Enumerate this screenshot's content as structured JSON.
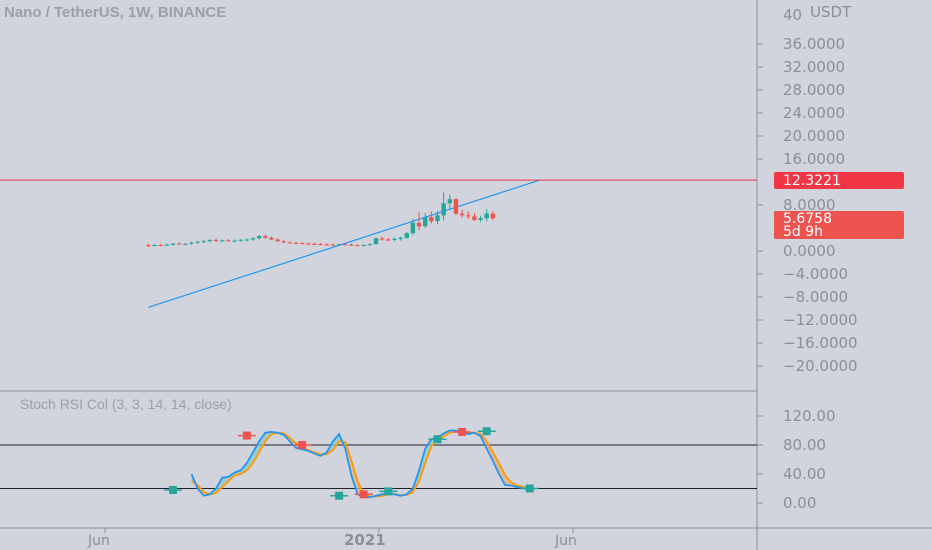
{
  "header": {
    "symbol_title": "Nano / TetherUS, 1W, BINANCE",
    "currency": "USDT",
    "top_tick_partial": "40"
  },
  "price_axis": {
    "ticks": [
      "36.0000",
      "32.0000",
      "28.0000",
      "24.0000",
      "20.0000",
      "16.0000",
      "8.0000",
      "0.0000",
      "−4.0000",
      "−8.0000",
      "−12.0000",
      "−16.0000",
      "−20.0000"
    ]
  },
  "price_badges": {
    "level_value": "12.3221",
    "last_price": "5.6758",
    "countdown": "5d 9h",
    "level_color": "#f23645",
    "last_color": "#ef5350"
  },
  "indicator": {
    "label": "Stoch RSI Col (3, 3, 14, 14, close)",
    "axis_ticks": [
      "120.00",
      "80.00",
      "40.00",
      "0.00"
    ],
    "bands": [
      80,
      20
    ]
  },
  "time_axis": {
    "labels": [
      "Jun",
      "2021",
      "Jun"
    ]
  },
  "colors": {
    "background": "#d1d4dc",
    "up": "#26a69a",
    "down": "#ef5350",
    "k_line": "#2196f3",
    "d_line": "#ff9800",
    "trendline": "#2196f3",
    "level_line": "#f23645",
    "separator": "#8a8f99"
  },
  "chart_data": [
    {
      "type": "candlestick",
      "title": "Nano / TetherUS, 1W, BINANCE",
      "y_unit": "USDT",
      "ylim": [
        -22,
        41
      ],
      "horizontal_level": 12.3221,
      "last_price": 5.6758,
      "trendline": {
        "start": {
          "week": 0,
          "price": -9.8
        },
        "end": {
          "week": 63.5,
          "price": 12.3
        }
      },
      "candles": [
        {
          "o": 1.0,
          "h": 1.3,
          "l": 0.7,
          "c": 0.95
        },
        {
          "o": 0.95,
          "h": 1.2,
          "l": 0.8,
          "c": 1.05
        },
        {
          "o": 1.05,
          "h": 1.25,
          "l": 0.85,
          "c": 1.0
        },
        {
          "o": 1.0,
          "h": 1.3,
          "l": 0.9,
          "c": 1.1
        },
        {
          "o": 1.1,
          "h": 1.4,
          "l": 0.95,
          "c": 1.3
        },
        {
          "o": 1.3,
          "h": 1.5,
          "l": 1.1,
          "c": 1.2
        },
        {
          "o": 1.2,
          "h": 1.4,
          "l": 1.0,
          "c": 1.25
        },
        {
          "o": 1.25,
          "h": 1.6,
          "l": 1.1,
          "c": 1.45
        },
        {
          "o": 1.45,
          "h": 1.8,
          "l": 1.3,
          "c": 1.6
        },
        {
          "o": 1.6,
          "h": 1.9,
          "l": 1.4,
          "c": 1.7
        },
        {
          "o": 1.7,
          "h": 2.1,
          "l": 1.5,
          "c": 1.9
        },
        {
          "o": 1.9,
          "h": 2.2,
          "l": 1.6,
          "c": 1.8
        },
        {
          "o": 1.8,
          "h": 2.0,
          "l": 1.55,
          "c": 1.85
        },
        {
          "o": 1.85,
          "h": 2.1,
          "l": 1.6,
          "c": 1.75
        },
        {
          "o": 1.75,
          "h": 2.0,
          "l": 1.5,
          "c": 1.8
        },
        {
          "o": 1.8,
          "h": 2.1,
          "l": 1.6,
          "c": 1.95
        },
        {
          "o": 1.95,
          "h": 2.2,
          "l": 1.7,
          "c": 2.0
        },
        {
          "o": 2.0,
          "h": 2.4,
          "l": 1.8,
          "c": 2.2
        },
        {
          "o": 2.2,
          "h": 2.8,
          "l": 2.0,
          "c": 2.6
        },
        {
          "o": 2.6,
          "h": 2.9,
          "l": 2.1,
          "c": 2.3
        },
        {
          "o": 2.3,
          "h": 2.5,
          "l": 1.9,
          "c": 2.0
        },
        {
          "o": 2.0,
          "h": 2.2,
          "l": 1.6,
          "c": 1.7
        },
        {
          "o": 1.7,
          "h": 1.9,
          "l": 1.4,
          "c": 1.5
        },
        {
          "o": 1.5,
          "h": 1.7,
          "l": 1.3,
          "c": 1.4
        },
        {
          "o": 1.4,
          "h": 1.6,
          "l": 1.2,
          "c": 1.35
        },
        {
          "o": 1.35,
          "h": 1.55,
          "l": 1.15,
          "c": 1.3
        },
        {
          "o": 1.3,
          "h": 1.5,
          "l": 1.1,
          "c": 1.25
        },
        {
          "o": 1.25,
          "h": 1.45,
          "l": 1.05,
          "c": 1.2
        },
        {
          "o": 1.2,
          "h": 1.4,
          "l": 1.0,
          "c": 1.15
        },
        {
          "o": 1.15,
          "h": 1.35,
          "l": 0.95,
          "c": 1.1
        },
        {
          "o": 1.1,
          "h": 1.3,
          "l": 0.9,
          "c": 1.05
        },
        {
          "o": 1.05,
          "h": 1.25,
          "l": 0.9,
          "c": 1.15
        },
        {
          "o": 1.15,
          "h": 1.4,
          "l": 0.95,
          "c": 1.1
        },
        {
          "o": 1.1,
          "h": 1.3,
          "l": 0.9,
          "c": 1.0
        },
        {
          "o": 1.0,
          "h": 1.2,
          "l": 0.85,
          "c": 0.95
        },
        {
          "o": 0.95,
          "h": 1.15,
          "l": 0.8,
          "c": 1.05
        },
        {
          "o": 1.05,
          "h": 1.3,
          "l": 0.9,
          "c": 1.2
        },
        {
          "o": 1.2,
          "h": 2.4,
          "l": 1.1,
          "c": 2.2
        },
        {
          "o": 2.2,
          "h": 2.5,
          "l": 1.8,
          "c": 2.0
        },
        {
          "o": 2.0,
          "h": 2.3,
          "l": 1.7,
          "c": 1.95
        },
        {
          "o": 1.95,
          "h": 2.4,
          "l": 1.7,
          "c": 2.1
        },
        {
          "o": 2.1,
          "h": 2.5,
          "l": 1.8,
          "c": 2.3
        },
        {
          "o": 2.3,
          "h": 3.3,
          "l": 2.1,
          "c": 3.1
        },
        {
          "o": 3.1,
          "h": 5.6,
          "l": 2.8,
          "c": 4.9
        },
        {
          "o": 4.9,
          "h": 6.8,
          "l": 3.6,
          "c": 4.3
        },
        {
          "o": 4.3,
          "h": 6.6,
          "l": 4.0,
          "c": 5.9
        },
        {
          "o": 5.9,
          "h": 6.9,
          "l": 4.8,
          "c": 5.2
        },
        {
          "o": 5.2,
          "h": 7.0,
          "l": 4.7,
          "c": 6.2
        },
        {
          "o": 6.2,
          "h": 10.2,
          "l": 5.3,
          "c": 8.3
        },
        {
          "o": 8.3,
          "h": 9.8,
          "l": 7.3,
          "c": 9.0
        },
        {
          "o": 9.0,
          "h": 9.2,
          "l": 6.2,
          "c": 6.5
        },
        {
          "o": 6.5,
          "h": 7.2,
          "l": 5.8,
          "c": 6.2
        },
        {
          "o": 6.2,
          "h": 6.9,
          "l": 5.6,
          "c": 6.0
        },
        {
          "o": 6.0,
          "h": 6.6,
          "l": 5.2,
          "c": 5.4
        },
        {
          "o": 5.4,
          "h": 6.1,
          "l": 5.0,
          "c": 5.7
        },
        {
          "o": 5.7,
          "h": 7.3,
          "l": 5.2,
          "c": 6.5
        },
        {
          "o": 6.5,
          "h": 6.9,
          "l": 5.4,
          "c": 5.68
        }
      ]
    },
    {
      "type": "line",
      "title": "Stoch RSI Col (3, 3, 14, 14, close)",
      "ylim": [
        -15,
        140
      ],
      "levels": [
        80,
        20
      ],
      "series": [
        {
          "color": "#2196f3",
          "values": [
            40,
            20,
            10,
            12,
            20,
            35,
            36,
            42,
            45,
            55,
            70,
            85,
            97,
            98,
            97,
            94,
            85,
            76,
            74,
            72,
            68,
            65,
            70,
            85,
            95,
            75,
            38,
            12,
            8,
            8,
            10,
            12,
            13,
            12,
            10,
            12,
            20,
            45,
            75,
            88,
            90,
            96,
            100,
            100,
            98,
            95,
            97,
            92,
            75,
            58,
            40,
            25,
            24,
            22,
            20,
            21
          ]
        },
        {
          "color": "#ff9800",
          "values": [
            30,
            25,
            15,
            12,
            14,
            22,
            30,
            38,
            40,
            45,
            55,
            70,
            85,
            95,
            97,
            96,
            90,
            82,
            76,
            73,
            70,
            67,
            67,
            73,
            85,
            84,
            58,
            30,
            12,
            9,
            9,
            10,
            12,
            12,
            11,
            11,
            15,
            30,
            55,
            78,
            87,
            92,
            97,
            99,
            99,
            97,
            97,
            95,
            85,
            70,
            55,
            38,
            28,
            24,
            22,
            21
          ]
        }
      ],
      "markers": [
        {
          "i": 4,
          "v": 18,
          "dir": "up"
        },
        {
          "i": 16,
          "v": 93,
          "dir": "down"
        },
        {
          "i": 25,
          "v": 80,
          "dir": "down"
        },
        {
          "i": 31,
          "v": 10,
          "dir": "up"
        },
        {
          "i": 35,
          "v": 12,
          "dir": "down"
        },
        {
          "i": 39,
          "v": 16,
          "dir": "up"
        },
        {
          "i": 47,
          "v": 88,
          "dir": "up"
        },
        {
          "i": 51,
          "v": 98,
          "dir": "down"
        },
        {
          "i": 55,
          "v": 99,
          "dir": "up"
        },
        {
          "i": 62,
          "v": 20,
          "dir": "up"
        }
      ]
    }
  ]
}
